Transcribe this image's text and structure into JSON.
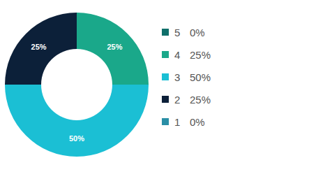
{
  "chart_data": {
    "type": "pie",
    "categories": [
      "5",
      "4",
      "3",
      "2",
      "1"
    ],
    "values": [
      0,
      25,
      50,
      25,
      0
    ],
    "value_labels": [
      "0%",
      "25%",
      "50%",
      "25%",
      "0%"
    ],
    "colors": [
      "#0f6f6a",
      "#1aa88a",
      "#1bbfd4",
      "#0c2039",
      "#2a8fa6"
    ],
    "data_labels": true
  }
}
